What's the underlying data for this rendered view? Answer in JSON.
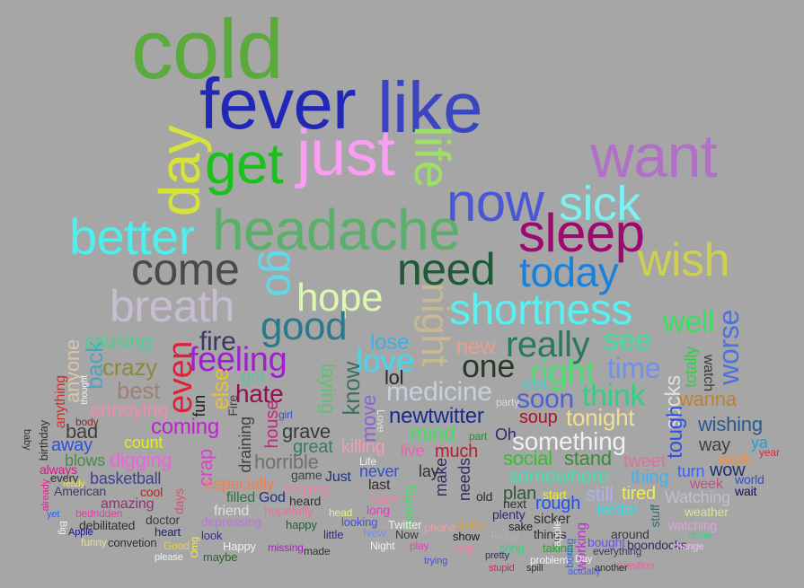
{
  "background": "#a6a6a6",
  "words": [
    {
      "text": "cold",
      "color": "#5aaa3c"
    },
    {
      "text": "fever",
      "color": "#2128b8"
    },
    {
      "text": "like",
      "color": "#3b44c2"
    },
    {
      "text": "day",
      "color": "#d7e23a"
    },
    {
      "text": "get",
      "color": "#18c21a"
    },
    {
      "text": "just",
      "color": "#f99ef2"
    },
    {
      "text": "life",
      "color": "#9ee066"
    },
    {
      "text": "want",
      "color": "#b070c8"
    },
    {
      "text": "now",
      "color": "#4a57d8"
    },
    {
      "text": "sick",
      "color": "#7ef0f0"
    },
    {
      "text": "better",
      "color": "#4cf0ee"
    },
    {
      "text": "headache",
      "color": "#5ab06a"
    },
    {
      "text": "sleep",
      "color": "#9c0a70"
    },
    {
      "text": "come",
      "color": "#4a4a4a"
    },
    {
      "text": "go",
      "color": "#62d8e8"
    },
    {
      "text": "need",
      "color": "#1e5a36"
    },
    {
      "text": "today",
      "color": "#1a80da"
    },
    {
      "text": "wish",
      "color": "#cfd050"
    },
    {
      "text": "breath",
      "color": "#c8bcd0"
    },
    {
      "text": "hope",
      "color": "#dcf8b0"
    },
    {
      "text": "night",
      "color": "#c6b890"
    },
    {
      "text": "shortness",
      "color": "#58f0f0"
    },
    {
      "text": "good",
      "color": "#2a7a8a"
    },
    {
      "text": "well",
      "color": "#38e060"
    },
    {
      "text": "worse",
      "color": "#5070e0"
    },
    {
      "text": "really",
      "color": "#2a7a5a"
    },
    {
      "text": "see",
      "color": "#40e0a0"
    },
    {
      "text": "fire",
      "color": "#3a3a60"
    },
    {
      "text": "feeling",
      "color": "#a020d0"
    },
    {
      "text": "even",
      "color": "#e0203a"
    },
    {
      "text": "crazy",
      "color": "#8a8a3a"
    },
    {
      "text": "back",
      "color": "#50a0c0"
    },
    {
      "text": "anyone",
      "color": "#d8c8a8"
    },
    {
      "text": "causing",
      "color": "#4ad090"
    },
    {
      "text": "lose",
      "color": "#3ab0e0"
    },
    {
      "text": "new",
      "color": "#f09a90"
    },
    {
      "text": "one",
      "color": "#2a3a2a"
    },
    {
      "text": "love",
      "color": "#42d8f0"
    },
    {
      "text": "right",
      "color": "#4ae070"
    },
    {
      "text": "time",
      "color": "#7090f0"
    },
    {
      "text": "watch",
      "color": "#3a3a3a"
    },
    {
      "text": "totally",
      "color": "#30d040"
    },
    {
      "text": "got",
      "color": "#60c0a0"
    },
    {
      "text": "else",
      "color": "#e8c030"
    },
    {
      "text": "hate",
      "color": "#901050"
    },
    {
      "text": "best",
      "color": "#a08070"
    },
    {
      "text": "laying",
      "color": "#60c070"
    },
    {
      "text": "know",
      "color": "#3a7060"
    },
    {
      "text": "lol",
      "color": "#2a2a2a"
    },
    {
      "text": "medicine",
      "color": "#c8d0e0"
    },
    {
      "text": "rest",
      "color": "#40d0d0"
    },
    {
      "text": "party",
      "color": "#dadada"
    },
    {
      "text": "soon",
      "color": "#5060d0"
    },
    {
      "text": "think",
      "color": "#30d080"
    },
    {
      "text": "sucks",
      "color": "#e0e0e0"
    },
    {
      "text": "wanna",
      "color": "#c08030"
    },
    {
      "text": "anything",
      "color": "#d03030"
    },
    {
      "text": "annoying",
      "color": "#f08ab0"
    },
    {
      "text": "fun",
      "color": "#202020"
    },
    {
      "text": "Fire",
      "color": "#4a3a3a"
    },
    {
      "text": "house",
      "color": "#c02880"
    },
    {
      "text": "girl",
      "color": "#3a50c0"
    },
    {
      "text": "move",
      "color": "#9060d0"
    },
    {
      "text": "newtwitter",
      "color": "#1a2a8a"
    },
    {
      "text": "soup",
      "color": "#b01030"
    },
    {
      "text": "tonight",
      "color": "#f0e090"
    },
    {
      "text": "tough",
      "color": "#3050e0"
    },
    {
      "text": "wishing",
      "color": "#2a5a8a"
    },
    {
      "text": "bad",
      "color": "#404040"
    },
    {
      "text": "coming",
      "color": "#c020d0"
    },
    {
      "text": "body",
      "color": "#803030"
    },
    {
      "text": "draining",
      "color": "#404040"
    },
    {
      "text": "grave",
      "color": "#3a3a3a"
    },
    {
      "text": "Love",
      "color": "#e0e0e0"
    },
    {
      "text": "mind",
      "color": "#40e060"
    },
    {
      "text": "part",
      "color": "#2a8a2a"
    },
    {
      "text": "Oh",
      "color": "#2a2a6a"
    },
    {
      "text": "something",
      "color": "#f0f0f0"
    },
    {
      "text": "way",
      "color": "#404040"
    },
    {
      "text": "ya",
      "color": "#20a0e0"
    },
    {
      "text": "year",
      "color": "#d03040"
    },
    {
      "text": "away",
      "color": "#2a50e0"
    },
    {
      "text": "count",
      "color": "#e0f020"
    },
    {
      "text": "great",
      "color": "#3a7a5a"
    },
    {
      "text": "killing",
      "color": "#f0a0b0"
    },
    {
      "text": "live",
      "color": "#f060b0"
    },
    {
      "text": "much",
      "color": "#b02030"
    },
    {
      "text": "social",
      "color": "#30c030"
    },
    {
      "text": "stand",
      "color": "#3a8a3a"
    },
    {
      "text": "tweet",
      "color": "#e070a0"
    },
    {
      "text": "work",
      "color": "#f09040"
    },
    {
      "text": "blows",
      "color": "#4a8a4a"
    },
    {
      "text": "digging",
      "color": "#f060e0"
    },
    {
      "text": "crap",
      "color": "#e040d0"
    },
    {
      "text": "horrible",
      "color": "#707070"
    },
    {
      "text": "Life",
      "color": "#f0f0f0"
    },
    {
      "text": "never",
      "color": "#3050d0"
    },
    {
      "text": "lay",
      "color": "#303030"
    },
    {
      "text": "somewhere",
      "color": "#40e0b0"
    },
    {
      "text": "thing",
      "color": "#40b0f0"
    },
    {
      "text": "turn",
      "color": "#4060f0"
    },
    {
      "text": "wow",
      "color": "#203070"
    },
    {
      "text": "world",
      "color": "#3050d0"
    },
    {
      "text": "always",
      "color": "#e01090"
    },
    {
      "text": "basketball",
      "color": "#404090"
    },
    {
      "text": "game",
      "color": "#404040"
    },
    {
      "text": "Just",
      "color": "#203080"
    },
    {
      "text": "especially",
      "color": "#f08050"
    },
    {
      "text": "helping",
      "color": "#f080b0"
    },
    {
      "text": "last",
      "color": "#3a2a2a"
    },
    {
      "text": "plan",
      "color": "#2a5a3a"
    },
    {
      "text": "rough",
      "color": "#2050f0"
    },
    {
      "text": "still",
      "color": "#b0b0f0"
    },
    {
      "text": "tired",
      "color": "#f0f040"
    },
    {
      "text": "Watching",
      "color": "#c0c0d0"
    },
    {
      "text": "week",
      "color": "#c05080"
    },
    {
      "text": "wait",
      "color": "#101060"
    },
    {
      "text": "American",
      "color": "#3a3a6a"
    },
    {
      "text": "cool",
      "color": "#c02020"
    },
    {
      "text": "filled",
      "color": "#307040"
    },
    {
      "text": "God",
      "color": "#203080"
    },
    {
      "text": "heard",
      "color": "#303030"
    },
    {
      "text": "later",
      "color": "#f080a0"
    },
    {
      "text": "make",
      "color": "#303060"
    },
    {
      "text": "needs",
      "color": "#303060"
    },
    {
      "text": "old",
      "color": "#2a2a2a"
    },
    {
      "text": "next",
      "color": "#303030"
    },
    {
      "text": "start",
      "color": "#f0f020"
    },
    {
      "text": "twitter",
      "color": "#30e0e0"
    },
    {
      "text": "weather",
      "color": "#e0e0a0"
    },
    {
      "text": "amazing",
      "color": "#903070"
    },
    {
      "text": "days",
      "color": "#e05070"
    },
    {
      "text": "friend",
      "color": "#e0e0e0"
    },
    {
      "text": "hopefully",
      "color": "#f07090"
    },
    {
      "text": "head",
      "color": "#f0f080"
    },
    {
      "text": "long",
      "color": "#e040c0"
    },
    {
      "text": "leaving",
      "color": "#40e060"
    },
    {
      "text": "plenty",
      "color": "#2a2a80"
    },
    {
      "text": "sicker",
      "color": "#303030"
    },
    {
      "text": "stuff",
      "color": "#307070"
    },
    {
      "text": "watching",
      "color": "#e0a0e0"
    },
    {
      "text": "bedridden",
      "color": "#e040a0"
    },
    {
      "text": "doctor",
      "color": "#3a3a3a"
    },
    {
      "text": "depressing",
      "color": "#c070e0"
    },
    {
      "text": "happy",
      "color": "#2a5a3a"
    },
    {
      "text": "looking",
      "color": "#4050d0"
    },
    {
      "text": "Twitter",
      "color": "#f0f0f0"
    },
    {
      "text": "sickly",
      "color": "#e0a040"
    },
    {
      "text": "sake",
      "color": "#202020"
    },
    {
      "text": "things",
      "color": "#303030"
    },
    {
      "text": "working",
      "color": "#c030d0"
    },
    {
      "text": "around",
      "color": "#3a3a3a"
    },
    {
      "text": "done",
      "color": "#3ad080"
    },
    {
      "text": "debilitated",
      "color": "#303030"
    },
    {
      "text": "heart",
      "color": "#202060"
    },
    {
      "text": "look",
      "color": "#303080"
    },
    {
      "text": "little",
      "color": "#303080"
    },
    {
      "text": "New",
      "color": "#7090f0"
    },
    {
      "text": "Now",
      "color": "#3a3a3a"
    },
    {
      "text": "phone",
      "color": "#f0a0a0"
    },
    {
      "text": "show",
      "color": "#202020"
    },
    {
      "text": "Today",
      "color": "#b0b0b0"
    },
    {
      "text": "bought",
      "color": "#7050e0"
    },
    {
      "text": "boondocks",
      "color": "#303060"
    },
    {
      "text": "Apple",
      "color": "#1a1a8a"
    },
    {
      "text": "convetion",
      "color": "#303030"
    },
    {
      "text": "funny",
      "color": "#e0e0a0"
    },
    {
      "text": "Good",
      "color": "#f0d040"
    },
    {
      "text": "Happy",
      "color": "#f0f0f0"
    },
    {
      "text": "missing",
      "color": "#a020c0"
    },
    {
      "text": "made",
      "color": "#303030"
    },
    {
      "text": "Night",
      "color": "#f0f0f0"
    },
    {
      "text": "play",
      "color": "#e040c0"
    },
    {
      "text": "stop",
      "color": "#f080a0"
    },
    {
      "text": "song",
      "color": "#3ad080"
    },
    {
      "text": "taking",
      "color": "#30a030"
    },
    {
      "text": "everything",
      "color": "#3a3a60"
    },
    {
      "text": "change",
      "color": "#f0c0f0"
    },
    {
      "text": "maybe",
      "color": "#306030"
    },
    {
      "text": "please",
      "color": "#f0f0f0"
    },
    {
      "text": "trying",
      "color": "#4050e0"
    },
    {
      "text": "problem",
      "color": "#f0f0f0"
    },
    {
      "text": "question",
      "color": "#f060a0"
    },
    {
      "text": "stupid",
      "color": "#e02050"
    },
    {
      "text": "spill",
      "color": "#303030"
    },
    {
      "text": "actually",
      "color": "#4060f0"
    },
    {
      "text": "another",
      "color": "#303030"
    },
    {
      "text": "baby",
      "color": "#303030"
    },
    {
      "text": "birthday",
      "color": "#303030"
    },
    {
      "text": "already",
      "color": "#e02090"
    },
    {
      "text": "Big",
      "color": "#f0f0f0"
    },
    {
      "text": "every",
      "color": "#303030"
    },
    {
      "text": "ready",
      "color": "#f0f040"
    },
    {
      "text": "Omg",
      "color": "#f0f040"
    },
    {
      "text": "boring",
      "color": "#3060f0"
    },
    {
      "text": "pretty",
      "color": "#303060"
    },
    {
      "text": "thought",
      "color": "#f0f0f0"
    },
    {
      "text": "apple",
      "color": "#f0f0f0"
    },
    {
      "text": "Day",
      "color": "#f0f0f0"
    },
    {
      "text": "yet",
      "color": "#3060f0"
    }
  ]
}
